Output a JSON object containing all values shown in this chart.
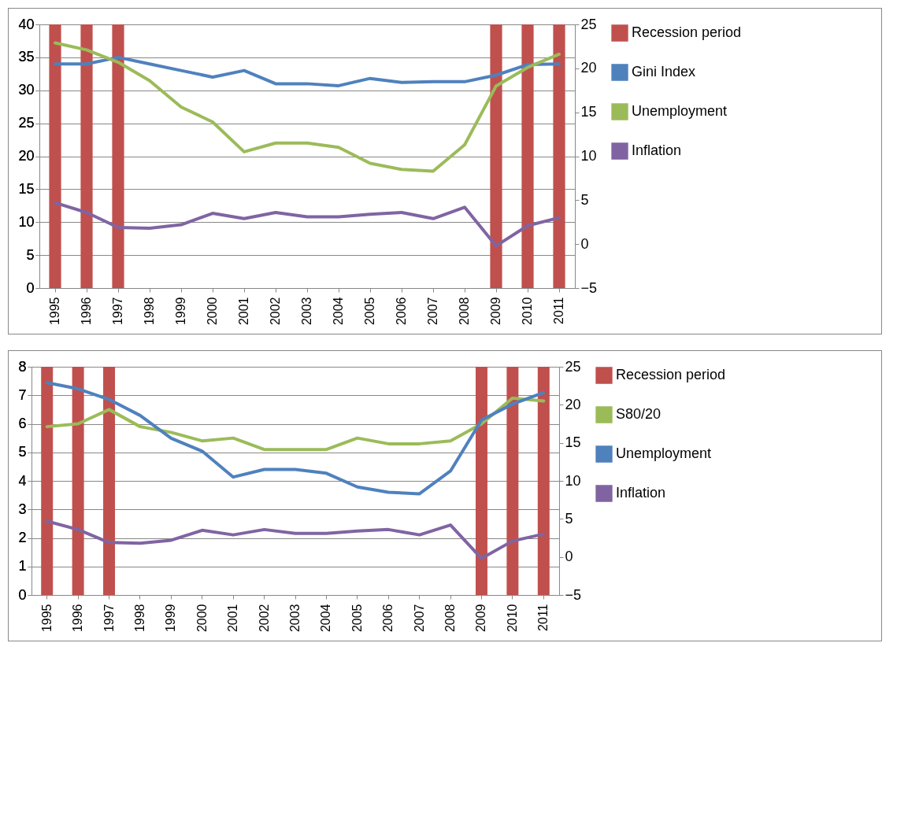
{
  "chart_data": [
    {
      "type": "bar",
      "categories": [
        "1995",
        "1996",
        "1997",
        "1998",
        "1999",
        "2000",
        "2001",
        "2002",
        "2003",
        "2004",
        "2005",
        "2006",
        "2007",
        "2008",
        "2009",
        "2010",
        "2011"
      ],
      "series": [
        {
          "name": "Recession period",
          "color": "#c0504d",
          "values": [
            40,
            40,
            40,
            null,
            null,
            null,
            null,
            null,
            null,
            null,
            null,
            null,
            null,
            null,
            40,
            40,
            40
          ]
        },
        {
          "name": "Gini Index",
          "type": "line",
          "color": "#4f81bd",
          "values": [
            34,
            34,
            35,
            34,
            33,
            32,
            33,
            31,
            31,
            30.7,
            31.8,
            31.2,
            31.3,
            31.3,
            32.3,
            33.9,
            34
          ]
        },
        {
          "name": "Unemployment",
          "type": "line",
          "axis": "y2",
          "color": "#9bbb59",
          "values": [
            22.9,
            22.1,
            20.7,
            18.6,
            15.6,
            13.9,
            10.5,
            11.5,
            11.5,
            11.0,
            9.2,
            8.5,
            8.3,
            11.3,
            18.0,
            20.1,
            21.6
          ]
        },
        {
          "name": "Inflation",
          "type": "line",
          "axis": "y2",
          "color": "#8064a2",
          "values": [
            4.7,
            3.6,
            1.9,
            1.8,
            2.2,
            3.5,
            2.9,
            3.6,
            3.1,
            3.1,
            3.4,
            3.6,
            2.9,
            4.2,
            -0.2,
            2.1,
            3.0
          ]
        }
      ],
      "ylim": [
        0,
        40
      ],
      "yticks": [
        0,
        5,
        10,
        15,
        20,
        25,
        30,
        35,
        40
      ],
      "y2lim": [
        -5,
        25
      ],
      "y2ticks": [
        -5,
        0,
        5,
        10,
        15,
        20,
        25
      ],
      "grid": "y",
      "legend": "right"
    },
    {
      "type": "bar",
      "categories": [
        "1995",
        "1996",
        "1997",
        "1998",
        "1999",
        "2000",
        "2001",
        "2002",
        "2003",
        "2004",
        "2005",
        "2006",
        "2007",
        "2008",
        "2009",
        "2010",
        "2011"
      ],
      "series": [
        {
          "name": "Recession period",
          "color": "#c0504d",
          "values": [
            8,
            8,
            8,
            null,
            null,
            null,
            null,
            null,
            null,
            null,
            null,
            null,
            null,
            null,
            8,
            8,
            8
          ]
        },
        {
          "name": "S80/20",
          "type": "line",
          "color": "#9bbb59",
          "values": [
            5.9,
            6.0,
            6.5,
            5.9,
            5.7,
            5.4,
            5.5,
            5.1,
            5.1,
            5.1,
            5.5,
            5.3,
            5.3,
            5.4,
            6.0,
            6.9,
            6.8
          ]
        },
        {
          "name": "Unemployment",
          "type": "line",
          "axis": "y2",
          "color": "#4f81bd",
          "values": [
            22.9,
            22.1,
            20.7,
            18.6,
            15.6,
            13.9,
            10.5,
            11.5,
            11.5,
            11.0,
            9.2,
            8.5,
            8.3,
            11.3,
            18.0,
            20.1,
            21.6
          ]
        },
        {
          "name": "Inflation",
          "type": "line",
          "axis": "y2",
          "color": "#8064a2",
          "values": [
            4.7,
            3.6,
            1.9,
            1.8,
            2.2,
            3.5,
            2.9,
            3.6,
            3.1,
            3.1,
            3.4,
            3.6,
            2.9,
            4.2,
            -0.2,
            2.1,
            3.0
          ]
        }
      ],
      "ylim": [
        0,
        8
      ],
      "yticks": [
        0,
        1,
        2,
        3,
        4,
        5,
        6,
        7,
        8
      ],
      "y2lim": [
        -5,
        25
      ],
      "y2ticks": [
        -5,
        0,
        5,
        10,
        15,
        20,
        25
      ],
      "grid": "y",
      "legend": "right"
    }
  ]
}
